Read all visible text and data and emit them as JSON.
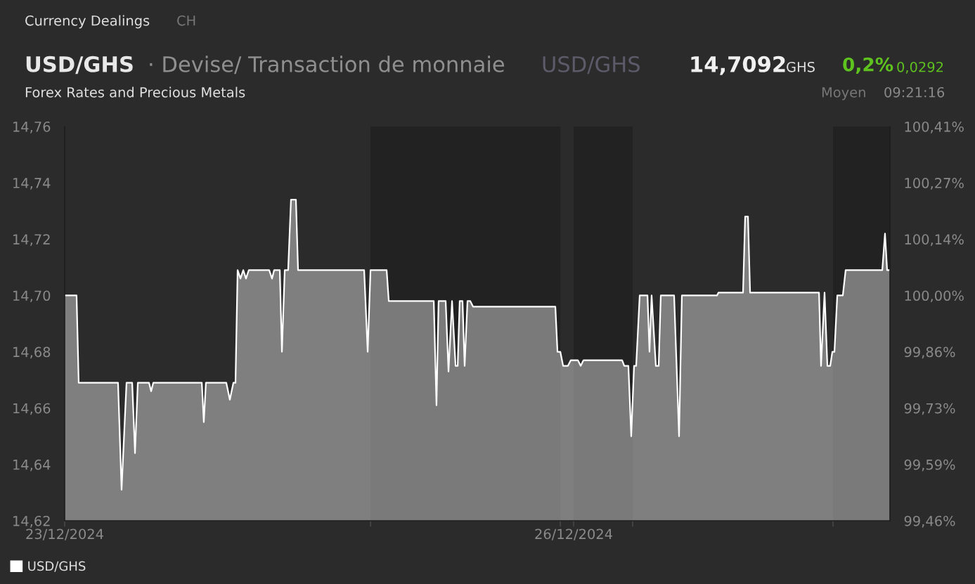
{
  "chart_data": {
    "type": "area",
    "title": "USD/GHS",
    "subtitle": "· Devise/ Transaction de monnaie",
    "annotations": [
      "Currency Dealings",
      "CH",
      "USD/GHS",
      "14,7092",
      "GHS",
      "0,2%",
      "0,0292",
      "Forex Rates and Precious Metals",
      "Moyen",
      "09:21:16"
    ],
    "x": [
      "2024-12-23T00:00",
      "2024-12-23T01:41",
      "2024-12-23T01:59",
      "2024-12-23T07:33",
      "2024-12-23T08:03",
      "2024-12-23T08:45",
      "2024-12-23T09:33",
      "2024-12-23T09:57",
      "2024-12-23T10:21",
      "2024-12-23T11:56",
      "2024-12-23T12:14",
      "2024-12-23T12:32",
      "2024-12-23T19:24",
      "2024-12-23T19:41",
      "2024-12-23T19:59",
      "2024-12-23T22:52",
      "2024-12-23T23:22",
      "2024-12-23T23:52",
      "2024-12-24T00:10",
      "2024-12-24T00:28",
      "2024-12-24T00:52",
      "2024-12-24T01:16",
      "2024-12-24T01:39",
      "2024-12-24T02:03",
      "2024-12-24T04:56",
      "2024-12-24T05:20",
      "2024-12-24T05:38",
      "2024-12-24T06:26",
      "2024-12-24T06:44",
      "2024-12-24T07:08",
      "2024-12-24T07:37",
      "2024-12-24T08:01",
      "2024-12-24T08:43",
      "2024-12-24T09:01",
      "2024-12-24T18:22",
      "2024-12-24T18:52",
      "2024-12-24T19:16",
      "2024-12-24T21:33",
      "2024-12-24T21:51",
      "2024-12-25T04:13",
      "2024-12-25T04:36",
      "2024-12-25T04:54",
      "2024-12-25T05:54",
      "2024-12-25T06:18",
      "2024-12-25T06:48",
      "2024-12-25T07:18",
      "2024-12-25T07:36",
      "2024-12-25T07:53",
      "2024-12-25T08:17",
      "2024-12-25T08:35",
      "2024-12-25T08:59",
      "2024-12-25T09:23",
      "2024-12-25T09:47",
      "2024-12-25T21:25",
      "2024-12-25T21:43",
      "2024-12-25T22:07",
      "2024-12-25T22:31",
      "2024-12-25T23:12",
      "2024-12-25T23:36",
      "2024-12-26T00:36",
      "2024-12-26T01:00",
      "2024-12-26T01:24",
      "2024-12-26T06:52",
      "2024-12-26T07:10",
      "2024-12-26T07:45",
      "2024-12-26T08:09",
      "2024-12-26T08:33",
      "2024-12-26T08:51",
      "2024-12-26T09:21",
      "2024-12-26T10:27",
      "2024-12-26T10:44",
      "2024-12-26T11:02",
      "2024-12-26T11:38",
      "2024-12-26T12:02",
      "2024-12-26T12:20",
      "2024-12-26T14:13",
      "2024-12-26T14:55",
      "2024-12-26T15:19",
      "2024-12-26T20:17",
      "2024-12-26T20:29",
      "2024-12-26T23:58",
      "2024-12-27T00:16",
      "2024-12-27T00:40",
      "2024-12-27T00:58",
      "2024-12-27T10:43",
      "2024-12-27T11:00",
      "2024-12-27T11:30",
      "2024-12-27T11:54",
      "2024-12-27T12:18",
      "2024-12-27T12:36",
      "2024-12-27T12:54",
      "2024-12-27T13:18",
      "2024-12-27T14:05",
      "2024-12-27T14:29",
      "2024-12-27T19:40",
      "2024-12-27T20:03",
      "2024-12-27T20:21",
      "2024-12-27T20:45"
    ],
    "series": [
      {
        "name": "USD/GHS",
        "color": "#ffffff",
        "values": [
          14.7,
          14.7,
          14.669,
          14.669,
          14.631,
          14.669,
          14.669,
          14.644,
          14.669,
          14.669,
          14.666,
          14.669,
          14.669,
          14.655,
          14.669,
          14.669,
          14.663,
          14.669,
          14.669,
          14.709,
          14.706,
          14.709,
          14.706,
          14.709,
          14.709,
          14.706,
          14.709,
          14.709,
          14.68,
          14.709,
          14.709,
          14.734,
          14.734,
          14.709,
          14.709,
          14.68,
          14.709,
          14.709,
          14.698,
          14.698,
          14.661,
          14.698,
          14.698,
          14.673,
          14.698,
          14.675,
          14.675,
          14.698,
          14.698,
          14.675,
          14.698,
          14.698,
          14.696,
          14.696,
          14.68,
          14.68,
          14.675,
          14.675,
          14.677,
          14.677,
          14.675,
          14.677,
          14.677,
          14.675,
          14.675,
          14.65,
          14.675,
          14.675,
          14.7,
          14.7,
          14.68,
          14.7,
          14.675,
          14.675,
          14.7,
          14.7,
          14.65,
          14.7,
          14.7,
          14.701,
          14.701,
          14.728,
          14.728,
          14.701,
          14.701,
          14.675,
          14.701,
          14.675,
          14.675,
          14.68,
          14.68,
          14.7,
          14.7,
          14.709,
          14.709,
          14.722,
          14.709,
          14.709
        ]
      }
    ],
    "xlim": [
      "2024-12-23T00:00",
      "2024-12-27T20:45"
    ],
    "xticks": [
      {
        "value": "2024-12-23",
        "label": "23/12/2024"
      },
      {
        "value": "2024-12-24T19:16",
        "label": null
      },
      {
        "value": "2024-12-25T22:07",
        "label": null
      },
      {
        "value": "2024-12-26",
        "label": "26/12/2024"
      },
      {
        "value": "2024-12-26T08:21",
        "label": null
      },
      {
        "value": "2024-12-27T12:42",
        "label": null
      }
    ],
    "ylim": [
      14.62,
      14.76
    ],
    "yticks": [
      {
        "value": 14.62,
        "label": "14,62"
      },
      {
        "value": 14.64,
        "label": "14,64"
      },
      {
        "value": 14.66,
        "label": "14,66"
      },
      {
        "value": 14.68,
        "label": "14,68"
      },
      {
        "value": 14.7,
        "label": "14,70"
      },
      {
        "value": 14.72,
        "label": "14,72"
      },
      {
        "value": 14.74,
        "label": "14,74"
      },
      {
        "value": 14.76,
        "label": "14,76"
      }
    ],
    "y2lim": [
      99.456,
      100.408
    ],
    "y2ticks": [
      {
        "value": 99.456,
        "label": "99,46%"
      },
      {
        "value": 99.592,
        "label": "99,59%"
      },
      {
        "value": 99.728,
        "label": "99,73%"
      },
      {
        "value": 99.864,
        "label": "99,86%"
      },
      {
        "value": 100.0,
        "label": "100,00%"
      },
      {
        "value": 100.136,
        "label": "100,14%"
      },
      {
        "value": 100.272,
        "label": "100,27%"
      },
      {
        "value": 100.408,
        "label": "100,41%"
      }
    ],
    "bands": [
      {
        "axis": "x",
        "from": "2024-12-24T19:16",
        "to": "2024-12-25T22:07",
        "label": null,
        "color": "#222222"
      },
      {
        "axis": "x",
        "from": "2024-12-26T00:00",
        "to": "2024-12-26T08:21",
        "label": null,
        "color": "#222222"
      },
      {
        "axis": "x",
        "from": "2024-12-27T12:42",
        "to": "2024-12-27T20:45",
        "label": null,
        "color": "#222222"
      }
    ],
    "grid": false,
    "legend": "bottom left"
  }
}
